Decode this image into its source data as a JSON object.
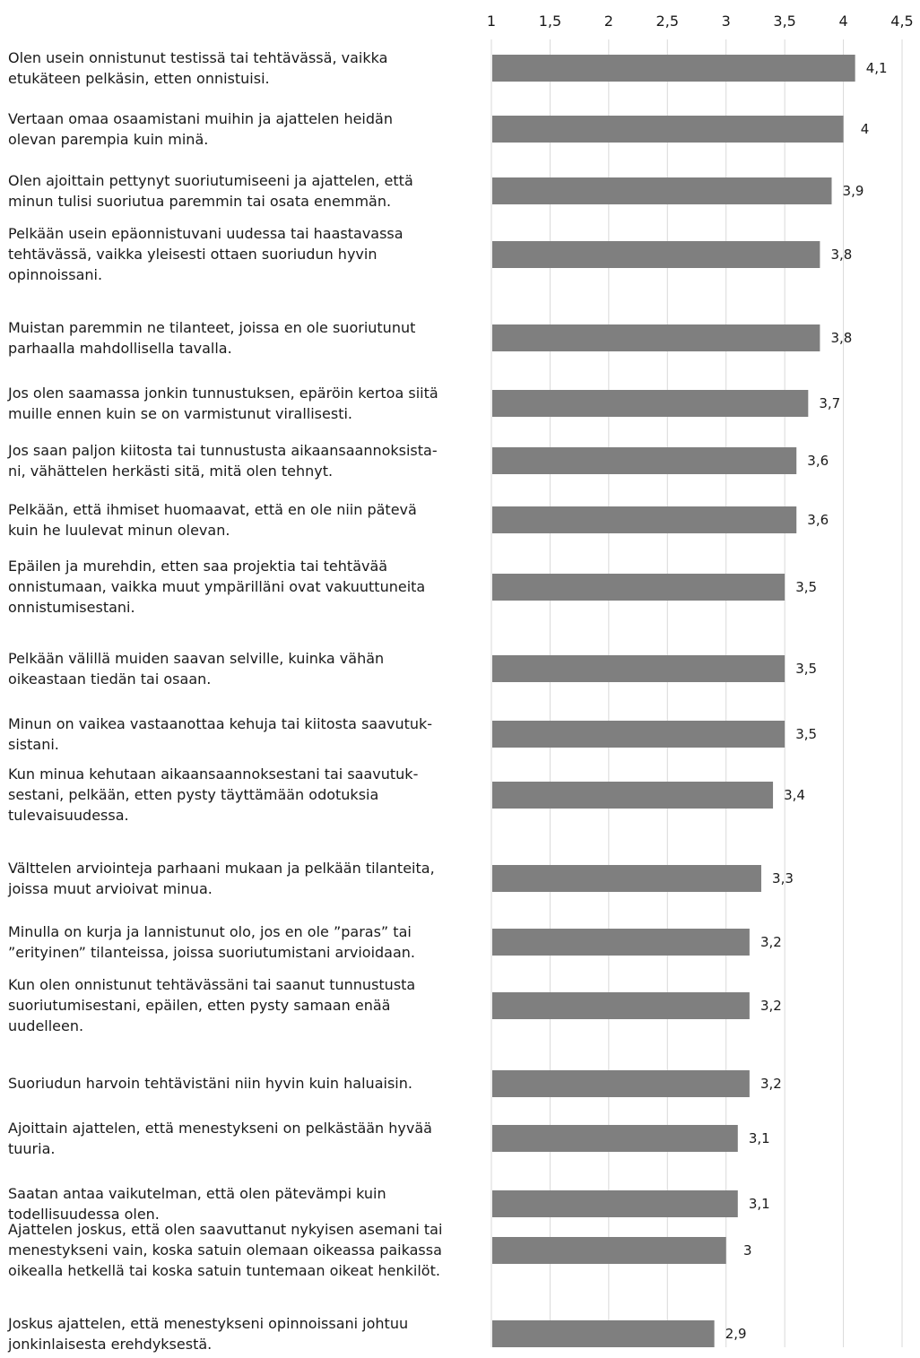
{
  "chart_data": {
    "type": "bar",
    "orientation": "horizontal",
    "xlim": [
      1,
      4.5
    ],
    "x_ticks": [
      "1",
      "1,5",
      "2",
      "2,5",
      "3",
      "3,5",
      "4",
      "4,5"
    ],
    "x_tick_values": [
      1,
      1.5,
      2,
      2.5,
      3,
      3.5,
      4,
      4.5
    ],
    "grid": "vertical",
    "bar_color": "#7f7f7f",
    "grid_color": "#d9d9d9",
    "categories": [
      {
        "lines": [
          "Olen usein onnistunut testissä tai tehtävässä, vaikka",
          "etukäteen pelkäsin, etten onnistuisi."
        ],
        "value": 4.1,
        "value_label": "4,1"
      },
      {
        "lines": [
          "Vertaan omaa osaamistani muihin ja ajattelen heidän",
          "olevan parempia kuin minä."
        ],
        "value": 4.0,
        "value_label": "4"
      },
      {
        "lines": [
          "Olen ajoittain pettynyt suoriutumiseeni ja ajattelen, että",
          "minun tulisi suoriutua paremmin tai osata enemmän."
        ],
        "value": 3.9,
        "value_label": "3,9"
      },
      {
        "lines": [
          "Pelkään usein epäonnistuvani uudessa tai haastavassa",
          "tehtävässä, vaikka yleisesti ottaen suoriudun hyvin",
          "opinnoissani."
        ],
        "value": 3.8,
        "value_label": "3,8"
      },
      {
        "lines": [
          "Muistan paremmin ne tilanteet, joissa en ole suoriutunut",
          "parhaalla mahdollisella tavalla."
        ],
        "value": 3.8,
        "value_label": "3,8"
      },
      {
        "lines": [
          "Jos olen saamassa jonkin tunnustuksen, epäröin kertoa siitä",
          "muille ennen kuin se on varmistunut virallisesti."
        ],
        "value": 3.7,
        "value_label": "3,7"
      },
      {
        "lines": [
          "Jos saan paljon kiitosta tai tunnustusta aikaansaannoksista-",
          "ni, vähättelen herkästi sitä, mitä olen tehnyt."
        ],
        "value": 3.6,
        "value_label": "3,6"
      },
      {
        "lines": [
          "Pelkään, että ihmiset huomaavat, että en ole niin pätevä",
          "kuin he luulevat minun olevan."
        ],
        "value": 3.6,
        "value_label": "3,6"
      },
      {
        "lines": [
          "Epäilen ja murehdin, etten saa projektia tai tehtävää",
          "onnistumaan, vaikka muut ympärilläni ovat vakuuttuneita",
          "onnistumisestani."
        ],
        "value": 3.5,
        "value_label": "3,5"
      },
      {
        "lines": [
          "Pelkään välillä muiden saavan selville, kuinka vähän",
          "oikeastaan tiedän tai osaan."
        ],
        "value": 3.5,
        "value_label": "3,5"
      },
      {
        "lines": [
          "Minun on vaikea vastaanottaa kehuja tai kiitosta saavutuk-",
          "sistani."
        ],
        "value": 3.5,
        "value_label": "3,5"
      },
      {
        "lines": [
          "Kun minua kehutaan aikaansaannoksestani tai saavutuk-",
          "sestani, pelkään, etten pysty täyttämään odotuksia",
          "tulevaisuudessa."
        ],
        "value": 3.4,
        "value_label": "3,4"
      },
      {
        "lines": [
          "Välttelen arviointeja parhaani mukaan ja pelkään tilanteita,",
          "joissa muut arvioivat minua."
        ],
        "value": 3.3,
        "value_label": "3,3"
      },
      {
        "lines": [
          "Minulla on kurja ja lannistunut olo, jos en ole ”paras” tai",
          "”erityinen” tilanteissa, joissa suoriutumistani arvioidaan."
        ],
        "value": 3.2,
        "value_label": "3,2"
      },
      {
        "lines": [
          "Kun olen onnistunut tehtävässäni tai saanut tunnustusta",
          "suoriutumisestani, epäilen, etten pysty samaan enää",
          "uudelleen."
        ],
        "value": 3.2,
        "value_label": "3,2"
      },
      {
        "lines": [
          "Suoriudun harvoin tehtävistäni niin hyvin kuin haluaisin."
        ],
        "value": 3.2,
        "value_label": "3,2"
      },
      {
        "lines": [
          "Ajoittain ajattelen, että menestykseni on pelkästään hyvää",
          "tuuria."
        ],
        "value": 3.1,
        "value_label": "3,1"
      },
      {
        "lines": [
          "Saatan antaa vaikutelman, että olen pätevämpi kuin",
          "todellisuudessa olen."
        ],
        "value": 3.1,
        "value_label": "3,1"
      },
      {
        "lines": [
          "Ajattelen joskus, että olen saavuttanut nykyisen asemani tai",
          "menestykseni vain, koska satuin olemaan oikeassa paikassa",
          "oikealla hetkellä tai koska satuin tuntemaan oikeat henkilöt."
        ],
        "value": 3.0,
        "value_label": "3"
      },
      {
        "lines": [
          "Joskus ajattelen, että menestykseni opinnoissani johtuu",
          "jonkinlaisesta erehdyksestä."
        ],
        "value": 2.9,
        "value_label": "2,9"
      }
    ]
  }
}
